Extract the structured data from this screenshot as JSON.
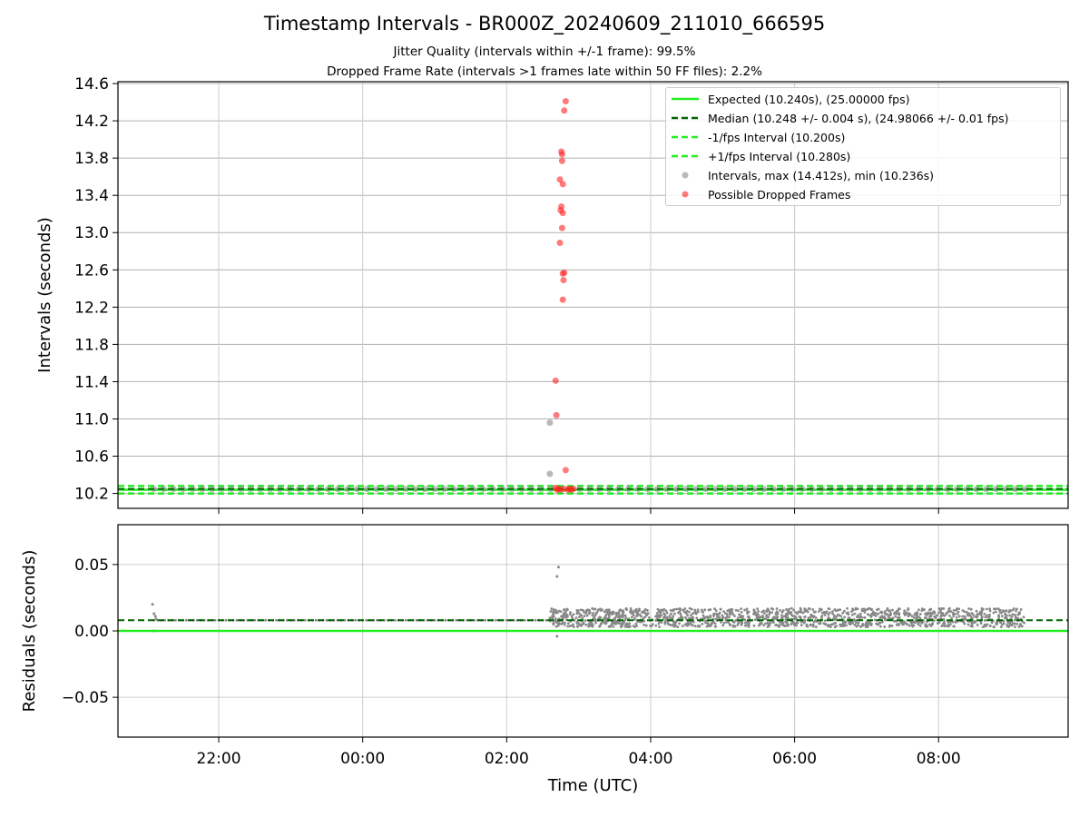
{
  "title": "Timestamp Intervals - BR000Z_20240609_211010_666595",
  "subtitle_1": "Jitter Quality (intervals within +/-1 frame): 99.5%",
  "subtitle_2": "Dropped Frame Rate (intervals >1 frames late within 50 FF files): 2.2%",
  "colors": {
    "expected": "#22ee22",
    "median": "#006400",
    "interval_band": "#22ee22",
    "intervals": "#888888",
    "dropped": "#ff2222",
    "grid": "#b0b0b0"
  },
  "chart_data": [
    {
      "type": "scatter",
      "panel": "top",
      "xlabel": "",
      "ylabel": "Intervals (seconds)",
      "x_range_hours": [
        20.6,
        33.8
      ],
      "ylim": [
        10.04,
        14.62
      ],
      "yticks": [
        10.2,
        10.6,
        11.0,
        11.4,
        11.8,
        12.2,
        12.6,
        13.0,
        13.4,
        13.8,
        14.2,
        14.6
      ],
      "grid": true,
      "legend_position": "top-right",
      "legend": [
        {
          "label": "Expected (10.240s), (25.00000 fps)",
          "style": "solid-line"
        },
        {
          "label": "Median (10.248 +/- 0.004 s), (24.98066 +/- 0.01 fps)",
          "style": "dashed-line-dark"
        },
        {
          "label": "-1/fps Interval (10.200s)",
          "style": "dashed-line"
        },
        {
          "label": "+1/fps Interval (10.280s)",
          "style": "dashed-line"
        },
        {
          "label": "Intervals, max (14.412s), min (10.236s)",
          "style": "grey-dot"
        },
        {
          "label": "Possible Dropped Frames",
          "style": "red-dot"
        }
      ],
      "lines": {
        "expected": 10.24,
        "median": 10.248,
        "minus_1fps": 10.2,
        "plus_1fps": 10.28
      },
      "intervals_regular": {
        "x_start": 21.1,
        "x_end": 33.2,
        "y": 10.248
      },
      "intervals_outliers": [
        {
          "x": 26.6,
          "y": 10.96
        },
        {
          "x": 26.6,
          "y": 10.41
        }
      ],
      "dropped_frames": [
        {
          "x": 26.82,
          "y": 14.41
        },
        {
          "x": 26.8,
          "y": 14.31
        },
        {
          "x": 26.76,
          "y": 13.87
        },
        {
          "x": 26.77,
          "y": 13.84
        },
        {
          "x": 26.77,
          "y": 13.77
        },
        {
          "x": 26.74,
          "y": 13.57
        },
        {
          "x": 26.78,
          "y": 13.52
        },
        {
          "x": 26.76,
          "y": 13.28
        },
        {
          "x": 26.75,
          "y": 13.24
        },
        {
          "x": 26.78,
          "y": 13.21
        },
        {
          "x": 26.77,
          "y": 13.05
        },
        {
          "x": 26.74,
          "y": 12.89
        },
        {
          "x": 26.8,
          "y": 12.57
        },
        {
          "x": 26.78,
          "y": 12.56
        },
        {
          "x": 26.79,
          "y": 12.49
        },
        {
          "x": 26.78,
          "y": 12.28
        },
        {
          "x": 26.68,
          "y": 11.41
        },
        {
          "x": 26.69,
          "y": 11.04
        },
        {
          "x": 26.82,
          "y": 10.45
        },
        {
          "x": 26.68,
          "y": 10.26
        },
        {
          "x": 26.72,
          "y": 10.25
        },
        {
          "x": 26.75,
          "y": 10.24
        },
        {
          "x": 26.8,
          "y": 10.25
        },
        {
          "x": 26.85,
          "y": 10.24
        },
        {
          "x": 26.9,
          "y": 10.24
        },
        {
          "x": 26.93,
          "y": 10.25
        },
        {
          "x": 26.7,
          "y": 10.24
        },
        {
          "x": 26.88,
          "y": 10.25
        }
      ]
    },
    {
      "type": "scatter",
      "panel": "bottom",
      "xlabel": "Time (UTC)",
      "ylabel": "Residuals (seconds)",
      "x_range_hours": [
        20.6,
        33.8
      ],
      "xticks": [
        "22:00",
        "00:00",
        "02:00",
        "04:00",
        "06:00",
        "08:00"
      ],
      "xtick_hours": [
        22,
        24,
        26,
        28,
        30,
        32
      ],
      "ylim": [
        -0.08,
        0.08
      ],
      "yticks": [
        0.05,
        0.0,
        -0.05
      ],
      "ytick_labels": [
        "0.05",
        "0.00",
        "−0.05"
      ],
      "grid": true,
      "lines": {
        "expected": 0.0,
        "median": 0.008
      },
      "residuals_quiet": {
        "x_start": 21.1,
        "x_end": 26.6,
        "y": 0.008
      },
      "residuals_noisy": {
        "x_start": 26.6,
        "x_end": 33.2,
        "y_min": 0.003,
        "y_max": 0.017
      },
      "residual_outliers": [
        {
          "x": 21.08,
          "y": 0.02
        },
        {
          "x": 21.1,
          "y": 0.013
        },
        {
          "x": 21.12,
          "y": 0.011
        },
        {
          "x": 21.13,
          "y": 0.009
        },
        {
          "x": 21.1,
          "y": 0.0
        },
        {
          "x": 26.72,
          "y": 0.048
        },
        {
          "x": 26.7,
          "y": 0.041
        },
        {
          "x": 26.66,
          "y": 0.016
        },
        {
          "x": 26.7,
          "y": -0.004
        },
        {
          "x": 26.65,
          "y": 0.005
        }
      ]
    }
  ]
}
